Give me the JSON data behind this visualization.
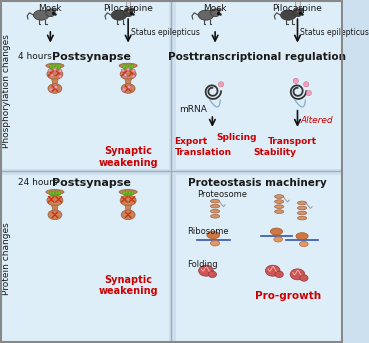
{
  "bg_color": "#cce0f0",
  "panel_bg_light": "#ddeef8",
  "divider_color": "#aaaaaa",
  "border_color": "#888888",
  "text_black": "#1a1a1a",
  "text_red": "#cc0000",
  "mouse_color": "#666666",
  "mouse_color_dark": "#444444",
  "synapse_body": "#c8855a",
  "synapse_edge": "#a06040",
  "synapse_green": "#77bb33",
  "synapse_green_edge": "#559911",
  "dot_pink": "#f0a0b8",
  "dot_edge": "#cc7090",
  "x_color_red": "#cc3311",
  "proteasome_color": "#d4956a",
  "ribosome_large": "#cc7744",
  "ribosome_small": "#dd9966",
  "ribosome_line": "#3355aa",
  "folding_color": "#cc5555",
  "mrna_color": "#333333",
  "mrna_tail": "#88aacc",
  "side_label_top": "Phosphorylation changes",
  "side_label_bottom": "Protein changes",
  "mock_label": "Mock",
  "pilocarpine_label": "Pilocarpine",
  "status_label": "Status epilepticus",
  "postsynapse_label": "Postsynapse",
  "posttrans_label": "Posttranscriptional regulation",
  "proteostasis_label": "Proteostasis machinery",
  "4h_label": "4 hours",
  "24h_label": "24 hours",
  "synaptic_weak": "Synaptic\nweakening",
  "mrna_label": "mRNA",
  "altered_label": "Altered",
  "export_label": "Export",
  "splicing_label": "Splicing",
  "transport_label": "Transport",
  "translation_label": "Translation",
  "stability_label": "Stability",
  "proteosome_label": "Proteosome",
  "ribosome_label": "Ribosome",
  "folding_label": "Folding",
  "progrowth_label": "Pro-growth"
}
